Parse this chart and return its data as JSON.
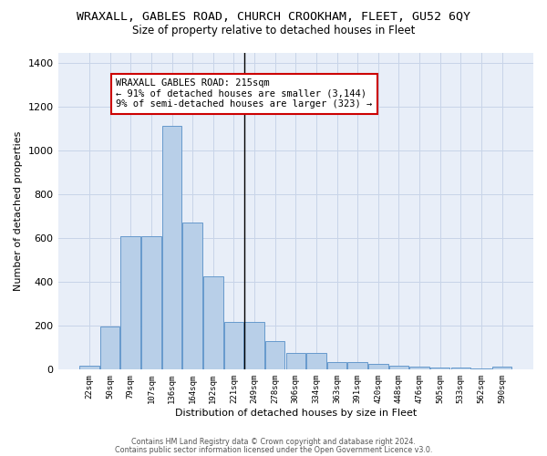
{
  "title": "WRAXALL, GABLES ROAD, CHURCH CROOKHAM, FLEET, GU52 6QY",
  "subtitle": "Size of property relative to detached houses in Fleet",
  "xlabel": "Distribution of detached houses by size in Fleet",
  "ylabel": "Number of detached properties",
  "categories": [
    "22sqm",
    "50sqm",
    "79sqm",
    "107sqm",
    "136sqm",
    "164sqm",
    "192sqm",
    "221sqm",
    "249sqm",
    "278sqm",
    "306sqm",
    "334sqm",
    "363sqm",
    "391sqm",
    "420sqm",
    "448sqm",
    "476sqm",
    "505sqm",
    "533sqm",
    "562sqm",
    "590sqm"
  ],
  "values": [
    18,
    195,
    607,
    607,
    1115,
    670,
    425,
    215,
    215,
    130,
    75,
    75,
    32,
    32,
    25,
    15,
    10,
    8,
    8,
    5,
    12
  ],
  "bar_color": "#b8cfe8",
  "bar_edge_color": "#6699cc",
  "vline_color": "black",
  "vline_index": 7.5,
  "annotation_text": "WRAXALL GABLES ROAD: 215sqm\n← 91% of detached houses are smaller (3,144)\n9% of semi-detached houses are larger (323) →",
  "annotation_box_color": "white",
  "annotation_box_edge": "#cc0000",
  "grid_color": "#c8d4e8",
  "background_color": "#e8eef8",
  "footer1": "Contains HM Land Registry data © Crown copyright and database right 2024.",
  "footer2": "Contains public sector information licensed under the Open Government Licence v3.0.",
  "ylim": [
    0,
    1450
  ],
  "yticks": [
    0,
    200,
    400,
    600,
    800,
    1000,
    1200,
    1400
  ],
  "title_fontsize": 9.5,
  "subtitle_fontsize": 8.5,
  "annotation_fontsize": 7.5,
  "axis_fontsize": 8,
  "tick_fontsize": 6.5,
  "footer_fontsize": 5.8
}
